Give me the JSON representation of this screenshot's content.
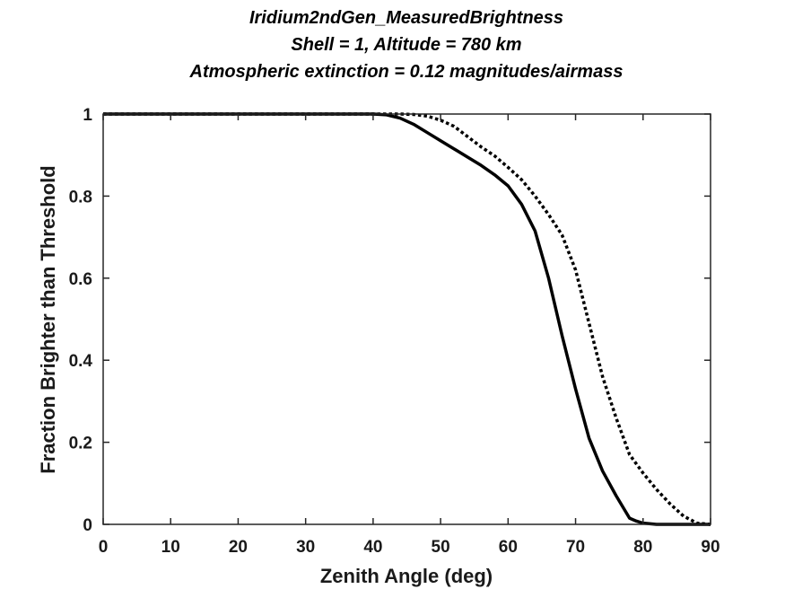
{
  "chart_data": {
    "type": "line",
    "title": [
      "Iridium2ndGen_MeasuredBrightness",
      "Shell = 1,  Altitude = 780 km",
      "Atmospheric extinction = 0.12 magnitudes/airmass"
    ],
    "xlabel": "Zenith Angle (deg)",
    "ylabel": "Fraction Brighter than Threshold",
    "xlim": [
      0,
      90
    ],
    "ylim": [
      0,
      1
    ],
    "xticks": [
      0,
      10,
      20,
      30,
      40,
      50,
      60,
      70,
      80,
      90
    ],
    "yticks": [
      0,
      0.2,
      0.4,
      0.6,
      0.8,
      1
    ],
    "ytick_labels": [
      "0",
      "0.2",
      "0.4",
      "0.6",
      "0.8",
      "1"
    ],
    "grid": false,
    "series": [
      {
        "style": "solid",
        "color": "#000000",
        "x": [
          0,
          40,
          42,
          44,
          46,
          48,
          50,
          52,
          54,
          56,
          58,
          60,
          62,
          64,
          66,
          68,
          70,
          72,
          74,
          76,
          78,
          79,
          80,
          82,
          84,
          86,
          88,
          90
        ],
        "y": [
          1,
          1,
          0.998,
          0.99,
          0.975,
          0.955,
          0.935,
          0.915,
          0.895,
          0.875,
          0.852,
          0.825,
          0.78,
          0.715,
          0.6,
          0.46,
          0.33,
          0.21,
          0.13,
          0.07,
          0.015,
          0.008,
          0.003,
          0,
          0,
          0,
          0,
          0
        ]
      },
      {
        "style": "dotted",
        "color": "#000000",
        "x": [
          0,
          44,
          46,
          48,
          50,
          52,
          54,
          56,
          58,
          60,
          62,
          64,
          66,
          68,
          70,
          72,
          74,
          76,
          78,
          80,
          82,
          84,
          86,
          88,
          90
        ],
        "y": [
          1,
          1,
          0.999,
          0.995,
          0.985,
          0.97,
          0.945,
          0.92,
          0.898,
          0.87,
          0.84,
          0.8,
          0.755,
          0.705,
          0.62,
          0.49,
          0.36,
          0.26,
          0.17,
          0.125,
          0.085,
          0.05,
          0.02,
          0.003,
          0
        ]
      }
    ]
  }
}
